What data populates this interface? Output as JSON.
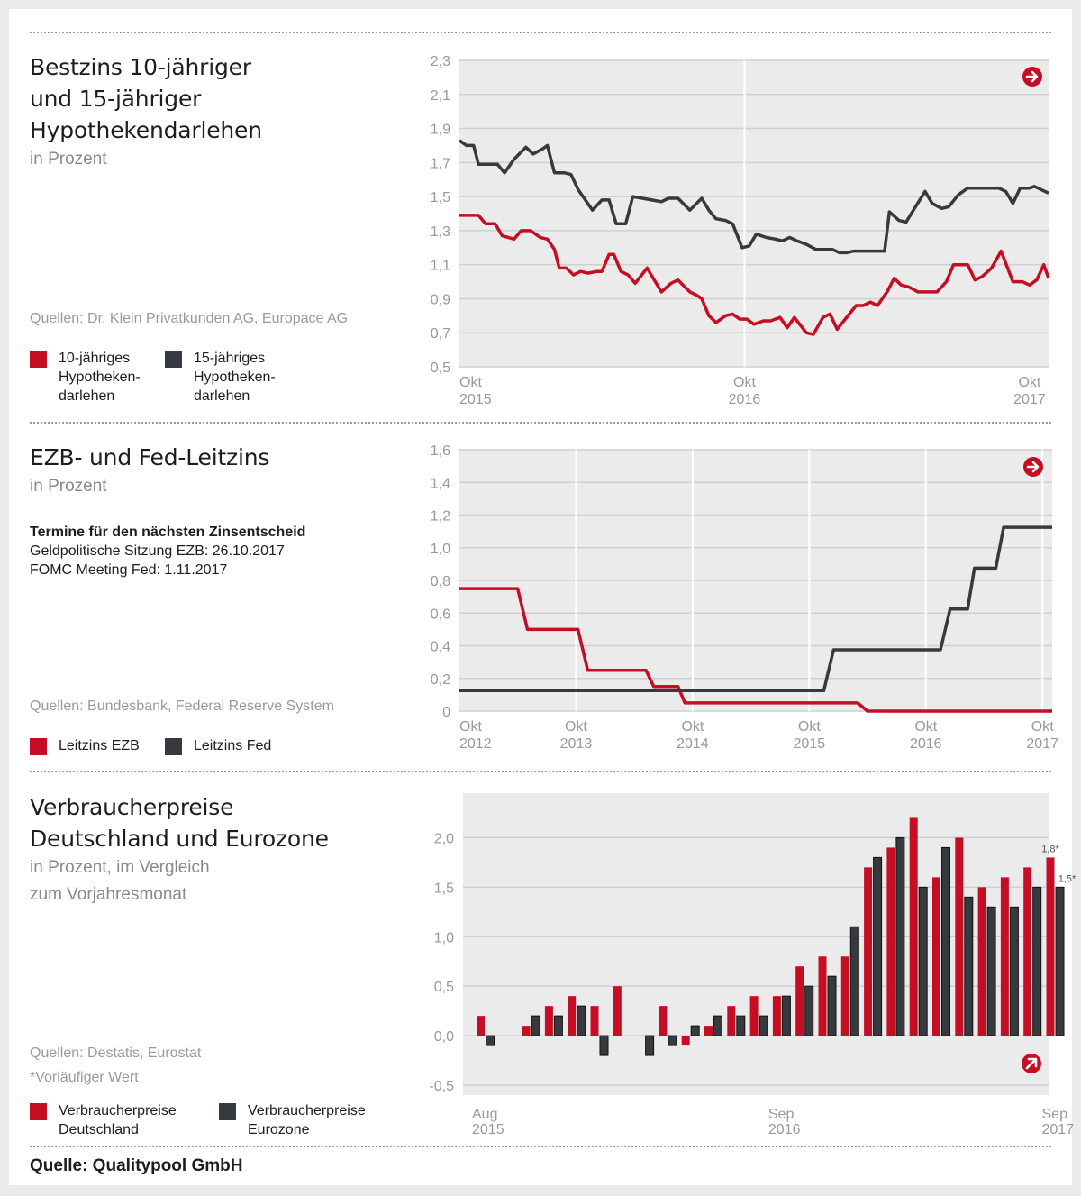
{
  "colors": {
    "red": "#c50d23",
    "dark": "#363a3e",
    "plot_bg": "#ebebeb",
    "grid": "#cfcfcf",
    "vline": "#ffffff"
  },
  "sections": {
    "mortgage": {
      "title": "Bestzins 10-jähriger\nund 15-jähriger\nHypothekendarlehen",
      "subtitle": "in Prozent",
      "source": "Quellen: Dr. Klein Privatkunden AG, Europace AG",
      "legend": [
        {
          "label": "10-jähriges\nHypotheken-\ndarlehen",
          "color": "#c50d23"
        },
        {
          "label": "15-jähriges\nHypotheken-\ndarlehen",
          "color": "#363a3e"
        }
      ],
      "trend_icon": "arrow-right-icon"
    },
    "rates": {
      "title": "EZB- und Fed-Leitzins",
      "subtitle": "in Prozent",
      "note_head": "Termine für den nächsten Zinsentscheid",
      "note_lines": [
        "Geldpolitische Sitzung EZB: 26.10.2017",
        "FOMC Meeting Fed: 1.11.2017"
      ],
      "source": "Quellen: Bundesbank, Federal Reserve System",
      "legend": [
        {
          "label": "Leitzins EZB",
          "color": "#c50d23"
        },
        {
          "label": "Leitzins Fed",
          "color": "#363a3e"
        }
      ],
      "trend_icon": "arrow-right-icon"
    },
    "cpi": {
      "title": "Verbraucherpreise\nDeutschland und Eurozone",
      "subtitle": "in Prozent, im Vergleich\nzum Vorjahresmonat",
      "source": "Quellen: Destatis, Eurostat",
      "footnote": "*Vorläufiger Wert",
      "legend": [
        {
          "label": "Verbraucherpreise\nDeutschland",
          "color": "#c50d23"
        },
        {
          "label": "Verbraucherpreise\nEurozone",
          "color": "#363a3e"
        }
      ],
      "trend_icon": "arrow-up-right-icon"
    }
  },
  "footer": "Quelle: Qualitypool GmbH",
  "chart_data": [
    {
      "id": "mortgage",
      "type": "line",
      "title": "Bestzins 10-jähriger und 15-jähriger Hypothekendarlehen",
      "ylabel": "in Prozent",
      "ylim": [
        0.5,
        2.3
      ],
      "yticks": [
        0.5,
        0.7,
        0.9,
        1.1,
        1.3,
        1.5,
        1.7,
        1.9,
        2.1,
        2.3
      ],
      "ytick_labels": [
        "0,5",
        "0,7",
        "0,9",
        "1,1",
        "1,3",
        "1,5",
        "1,7",
        "1,9",
        "2,1",
        "2,3"
      ],
      "xlim": [
        0,
        24.8
      ],
      "xticks": [
        {
          "x": 0,
          "label": [
            "Okt",
            "2015"
          ]
        },
        {
          "x": 12,
          "label": [
            "Okt",
            "2016"
          ]
        },
        {
          "x": 24,
          "label": [
            "Okt",
            "2017"
          ]
        }
      ],
      "x_unit": "months since Okt 2015",
      "vlines": [
        12
      ],
      "grid": true,
      "series": [
        {
          "name": "10-jähriges Hypothekendarlehen",
          "color": "#c50d23",
          "points": [
            [
              0,
              1.39
            ],
            [
              0.8,
              1.39
            ],
            [
              1.1,
              1.34
            ],
            [
              1.5,
              1.34
            ],
            [
              1.8,
              1.27
            ],
            [
              2.3,
              1.25
            ],
            [
              2.6,
              1.3
            ],
            [
              3.0,
              1.3
            ],
            [
              3.4,
              1.26
            ],
            [
              3.7,
              1.25
            ],
            [
              4.0,
              1.19
            ],
            [
              4.2,
              1.08
            ],
            [
              4.5,
              1.08
            ],
            [
              4.8,
              1.04
            ],
            [
              5.1,
              1.06
            ],
            [
              5.4,
              1.05
            ],
            [
              5.8,
              1.06
            ],
            [
              6.0,
              1.06
            ],
            [
              6.3,
              1.16
            ],
            [
              6.5,
              1.16
            ],
            [
              6.8,
              1.06
            ],
            [
              7.1,
              1.04
            ],
            [
              7.4,
              0.99
            ],
            [
              7.9,
              1.08
            ],
            [
              8.5,
              0.94
            ],
            [
              8.9,
              0.99
            ],
            [
              9.2,
              1.01
            ],
            [
              9.7,
              0.94
            ],
            [
              10.0,
              0.92
            ],
            [
              10.2,
              0.9
            ],
            [
              10.5,
              0.8
            ],
            [
              10.8,
              0.76
            ],
            [
              11.2,
              0.8
            ],
            [
              11.5,
              0.81
            ],
            [
              11.8,
              0.78
            ],
            [
              12.1,
              0.78
            ],
            [
              12.4,
              0.75
            ],
            [
              12.8,
              0.77
            ],
            [
              13.1,
              0.77
            ],
            [
              13.5,
              0.79
            ],
            [
              13.8,
              0.73
            ],
            [
              14.1,
              0.79
            ],
            [
              14.6,
              0.7
            ],
            [
              14.9,
              0.69
            ],
            [
              15.3,
              0.79
            ],
            [
              15.6,
              0.81
            ],
            [
              15.9,
              0.72
            ],
            [
              16.7,
              0.86
            ],
            [
              17.0,
              0.86
            ],
            [
              17.3,
              0.88
            ],
            [
              17.6,
              0.86
            ],
            [
              18.0,
              0.94
            ],
            [
              18.3,
              1.02
            ],
            [
              18.6,
              0.98
            ],
            [
              18.9,
              0.97
            ],
            [
              19.3,
              0.94
            ],
            [
              19.8,
              0.94
            ],
            [
              20.1,
              0.94
            ],
            [
              20.5,
              1.0
            ],
            [
              20.8,
              1.1
            ],
            [
              21.4,
              1.1
            ],
            [
              21.7,
              1.01
            ],
            [
              22.0,
              1.03
            ],
            [
              22.4,
              1.08
            ],
            [
              22.8,
              1.18
            ],
            [
              23.3,
              1.0
            ],
            [
              23.7,
              1.0
            ],
            [
              24.0,
              0.98
            ],
            [
              24.3,
              1.01
            ],
            [
              24.6,
              1.1
            ],
            [
              24.8,
              1.02
            ]
          ]
        },
        {
          "name": "15-jähriges Hypothekendarlehen",
          "color": "#363a3e",
          "points": [
            [
              0,
              1.83
            ],
            [
              0.3,
              1.8
            ],
            [
              0.6,
              1.8
            ],
            [
              0.8,
              1.69
            ],
            [
              1.3,
              1.69
            ],
            [
              1.6,
              1.69
            ],
            [
              1.9,
              1.64
            ],
            [
              2.3,
              1.72
            ],
            [
              2.8,
              1.79
            ],
            [
              3.1,
              1.75
            ],
            [
              3.5,
              1.78
            ],
            [
              3.7,
              1.8
            ],
            [
              4.0,
              1.64
            ],
            [
              4.4,
              1.64
            ],
            [
              4.7,
              1.63
            ],
            [
              5.0,
              1.54
            ],
            [
              5.3,
              1.48
            ],
            [
              5.6,
              1.42
            ],
            [
              6.0,
              1.48
            ],
            [
              6.3,
              1.48
            ],
            [
              6.6,
              1.34
            ],
            [
              7.0,
              1.34
            ],
            [
              7.3,
              1.5
            ],
            [
              7.7,
              1.49
            ],
            [
              8.1,
              1.48
            ],
            [
              8.5,
              1.47
            ],
            [
              8.8,
              1.49
            ],
            [
              9.2,
              1.49
            ],
            [
              9.7,
              1.42
            ],
            [
              10.2,
              1.49
            ],
            [
              10.5,
              1.42
            ],
            [
              10.8,
              1.37
            ],
            [
              11.2,
              1.36
            ],
            [
              11.5,
              1.34
            ],
            [
              11.9,
              1.2
            ],
            [
              12.2,
              1.21
            ],
            [
              12.5,
              1.28
            ],
            [
              12.9,
              1.26
            ],
            [
              13.3,
              1.25
            ],
            [
              13.6,
              1.24
            ],
            [
              13.9,
              1.26
            ],
            [
              14.2,
              1.24
            ],
            [
              14.6,
              1.22
            ],
            [
              15.0,
              1.19
            ],
            [
              15.4,
              1.19
            ],
            [
              15.7,
              1.19
            ],
            [
              16.0,
              1.17
            ],
            [
              16.3,
              1.17
            ],
            [
              16.6,
              1.18
            ],
            [
              17.9,
              1.18
            ],
            [
              18.1,
              1.41
            ],
            [
              18.5,
              1.36
            ],
            [
              18.8,
              1.35
            ],
            [
              19.2,
              1.44
            ],
            [
              19.6,
              1.53
            ],
            [
              19.9,
              1.46
            ],
            [
              20.3,
              1.43
            ],
            [
              20.6,
              1.44
            ],
            [
              21.0,
              1.51
            ],
            [
              21.4,
              1.55
            ],
            [
              22.2,
              1.55
            ],
            [
              22.7,
              1.55
            ],
            [
              23.0,
              1.53
            ],
            [
              23.3,
              1.46
            ],
            [
              23.6,
              1.55
            ],
            [
              24.0,
              1.55
            ],
            [
              24.2,
              1.56
            ],
            [
              24.8,
              1.52
            ]
          ]
        }
      ],
      "legend_position": "left-panel"
    },
    {
      "id": "rates",
      "type": "line",
      "title": "EZB- und Fed-Leitzins",
      "ylabel": "in Prozent",
      "ylim": [
        0,
        1.6
      ],
      "yticks": [
        0,
        0.2,
        0.4,
        0.6,
        0.8,
        1.0,
        1.2,
        1.4,
        1.6
      ],
      "ytick_labels": [
        "0",
        "0,2",
        "0,4",
        "0,6",
        "0,8",
        "1,0",
        "1,2",
        "1,4",
        "1,6"
      ],
      "xlim": [
        0,
        61
      ],
      "xticks": [
        {
          "x": 0,
          "label": [
            "Okt",
            "2012"
          ]
        },
        {
          "x": 12,
          "label": [
            "Okt",
            "2013"
          ]
        },
        {
          "x": 24,
          "label": [
            "Okt",
            "2014"
          ]
        },
        {
          "x": 36,
          "label": [
            "Okt",
            "2015"
          ]
        },
        {
          "x": 48,
          "label": [
            "Okt",
            "2016"
          ]
        },
        {
          "x": 60,
          "label": [
            "Okt",
            "2017"
          ]
        }
      ],
      "x_unit": "months since Okt 2012",
      "vlines": [
        12,
        24,
        36,
        48,
        60
      ],
      "grid": true,
      "series": [
        {
          "name": "Leitzins EZB",
          "color": "#c50d23",
          "points": [
            [
              0,
              0.75
            ],
            [
              6.0,
              0.75
            ],
            [
              7.0,
              0.5
            ],
            [
              12.2,
              0.5
            ],
            [
              13.2,
              0.25
            ],
            [
              19.2,
              0.25
            ],
            [
              20.0,
              0.15
            ],
            [
              22.5,
              0.15
            ],
            [
              23.2,
              0.05
            ],
            [
              41.0,
              0.05
            ],
            [
              42.0,
              0.0
            ],
            [
              61,
              0.0
            ]
          ]
        },
        {
          "name": "Leitzins Fed",
          "color": "#363a3e",
          "points": [
            [
              0,
              0.125
            ],
            [
              37.5,
              0.125
            ],
            [
              38.5,
              0.375
            ],
            [
              49.5,
              0.375
            ],
            [
              50.5,
              0.625
            ],
            [
              52.3,
              0.625
            ],
            [
              53.0,
              0.875
            ],
            [
              55.2,
              0.875
            ],
            [
              56.0,
              1.125
            ],
            [
              61,
              1.125
            ]
          ]
        }
      ],
      "legend_position": "left-panel"
    },
    {
      "id": "cpi",
      "type": "bar",
      "title": "Verbraucherpreise Deutschland und Eurozone",
      "ylabel": "in Prozent, im Vergleich zum Vorjahresmonat",
      "ylim": [
        -0.6,
        2.45
      ],
      "yticks": [
        -0.5,
        0.0,
        0.5,
        1.0,
        1.5,
        2.0
      ],
      "ytick_labels": [
        "-0,5",
        "0,0",
        "0,5",
        "1,0",
        "1,5",
        "2,0"
      ],
      "categories": [
        "Aug 2015",
        "Sep 2015",
        "Okt 2015",
        "Nov 2015",
        "Dez 2015",
        "Jan 2016",
        "Feb 2016",
        "Mär 2016",
        "Apr 2016",
        "Mai 2016",
        "Jun 2016",
        "Jul 2016",
        "Aug 2016",
        "Sep 2016",
        "Okt 2016",
        "Nov 2016",
        "Dez 2016",
        "Jan 2017",
        "Feb 2017",
        "Mär 2017",
        "Apr 2017",
        "Mai 2017",
        "Jun 2017",
        "Jul 2017",
        "Aug 2017",
        "Sep 2017"
      ],
      "xtick_labels": [
        {
          "index": 0,
          "label": [
            "Aug",
            "2015"
          ]
        },
        {
          "index": 13,
          "label": [
            "Sep",
            "2016"
          ]
        },
        {
          "index": 25,
          "label": [
            "Sep",
            "2017"
          ]
        }
      ],
      "series": [
        {
          "name": "Verbraucherpreise Deutschland",
          "color": "#c50d23",
          "values": [
            0.2,
            0.0,
            0.1,
            0.3,
            0.4,
            0.3,
            0.5,
            0.0,
            0.3,
            -0.1,
            0.1,
            0.3,
            0.4,
            0.4,
            0.7,
            0.8,
            0.8,
            1.7,
            1.9,
            2.2,
            1.6,
            2.0,
            1.5,
            1.6,
            1.7,
            1.8
          ]
        },
        {
          "name": "Verbraucherpreise Eurozone",
          "color": "#363a3e",
          "values": [
            -0.1,
            null,
            0.2,
            0.2,
            0.3,
            -0.2,
            null,
            -0.2,
            -0.1,
            0.1,
            0.2,
            0.2,
            0.2,
            0.4,
            0.5,
            0.6,
            1.1,
            1.8,
            2.0,
            1.5,
            1.9,
            1.4,
            1.3,
            1.3,
            1.5,
            1.5
          ]
        }
      ],
      "annotations": [
        {
          "series": 0,
          "index": 25,
          "text": "1,8*"
        },
        {
          "series": 1,
          "index": 25,
          "text": "1,5*"
        }
      ],
      "grid": true,
      "legend_position": "left-panel"
    }
  ]
}
